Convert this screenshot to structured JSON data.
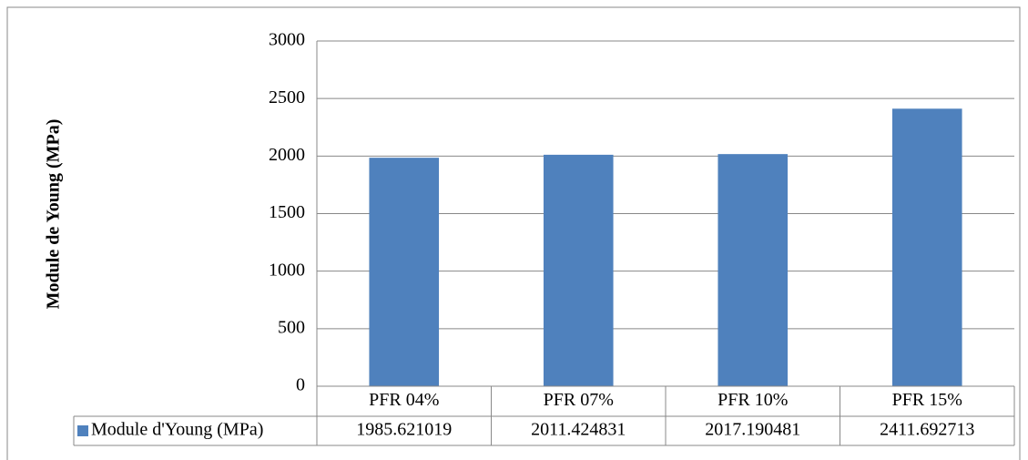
{
  "chart_data": {
    "type": "bar",
    "y_label": "Module de Young (MPa)",
    "categories": [
      "PFR 04%",
      "PFR 07%",
      "PFR 10%",
      "PFR 15%"
    ],
    "series": [
      {
        "name": "Module d'Young (MPa)",
        "color": "#4f81bd",
        "values": [
          1985.621019,
          2011.424831,
          2017.190481,
          2411.692713
        ]
      }
    ],
    "ylim": [
      0,
      3000
    ],
    "yticks": [
      0,
      500,
      1000,
      1500,
      2000,
      2500,
      3000
    ],
    "grid": true,
    "data_table": true
  }
}
